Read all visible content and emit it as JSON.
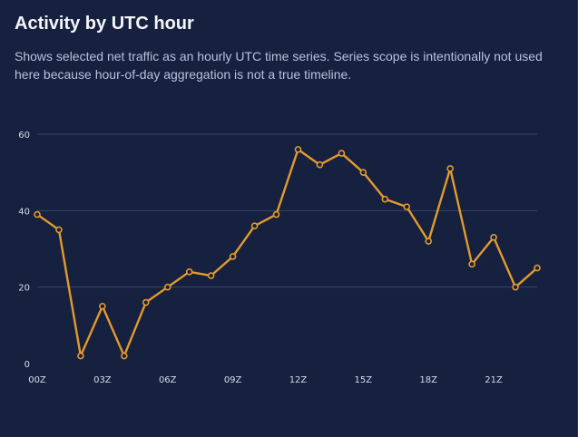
{
  "title": "Activity by UTC hour",
  "subtitle": "Shows selected net traffic as an hourly UTC time series. Series scope is intentionally not used here because hour-of-day aggregation is not a true timeline.",
  "colors": {
    "background": "#16203f",
    "line": "#e39a2d",
    "grid": "#3a4666",
    "text": "#d7ddeb"
  },
  "chart_data": {
    "type": "line",
    "x": [
      "00Z",
      "01Z",
      "02Z",
      "03Z",
      "04Z",
      "05Z",
      "06Z",
      "07Z",
      "08Z",
      "09Z",
      "10Z",
      "11Z",
      "12Z",
      "13Z",
      "14Z",
      "15Z",
      "16Z",
      "17Z",
      "18Z",
      "19Z",
      "20Z",
      "21Z",
      "22Z",
      "23Z"
    ],
    "series": [
      {
        "values": [
          39,
          35,
          2,
          15,
          2,
          16,
          20,
          24,
          23,
          28,
          36,
          39,
          56,
          52,
          55,
          50,
          43,
          41,
          32,
          51,
          26,
          33,
          20,
          25
        ]
      }
    ],
    "x_tick_labels": [
      "00Z",
      "03Z",
      "06Z",
      "09Z",
      "12Z",
      "15Z",
      "18Z",
      "21Z"
    ],
    "y_ticks": [
      0,
      20,
      40,
      60
    ],
    "ylim": [
      0,
      60
    ],
    "grid": true,
    "legend": "none"
  }
}
